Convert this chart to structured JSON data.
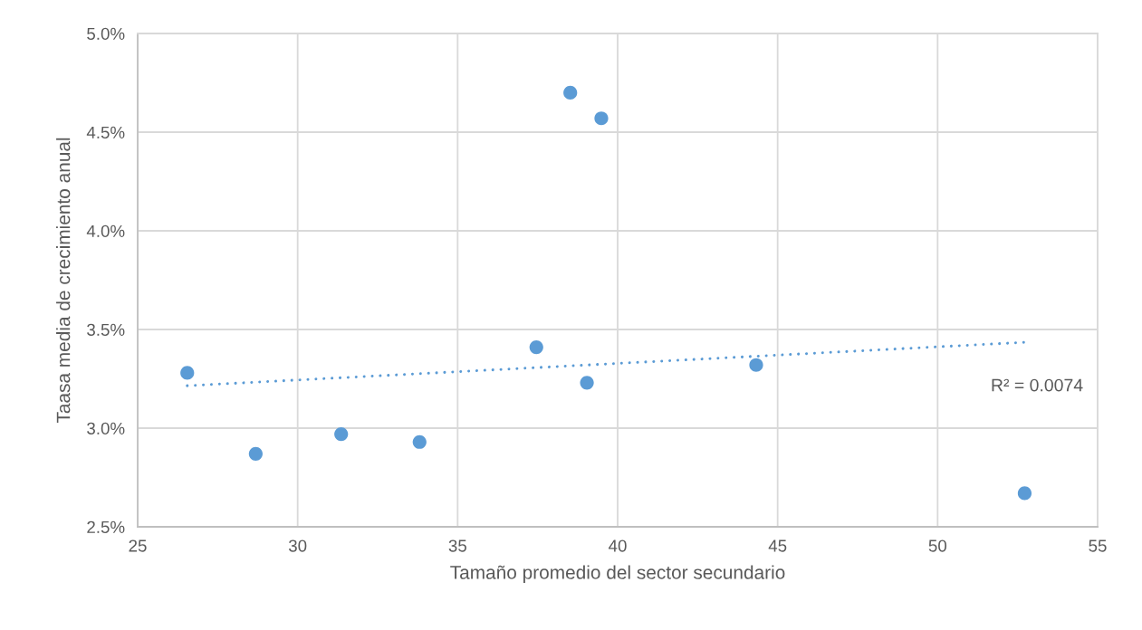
{
  "chart_data": {
    "type": "scatter",
    "xlabel": "Tamaño promedio del sector secundario",
    "ylabel": "Taasa media de crecimiento anual",
    "xlim": [
      25,
      55
    ],
    "xticks": [
      25,
      30,
      35,
      40,
      45,
      50,
      55
    ],
    "ylim": [
      2.5,
      5.0
    ],
    "yticks": [
      {
        "value": 2.5,
        "label": "2.5%"
      },
      {
        "value": 3.0,
        "label": "3.0%"
      },
      {
        "value": 3.5,
        "label": "3.5%"
      },
      {
        "value": 4.0,
        "label": "4.0%"
      },
      {
        "value": 4.5,
        "label": "4.5%"
      },
      {
        "value": 5.0,
        "label": "5.0%"
      }
    ],
    "grid": true,
    "annotations": [
      "R² = 0.0074"
    ],
    "series": [
      {
        "color": "#5b9bd5",
        "marker": "circle",
        "x": [
          26.55,
          28.69,
          31.36,
          33.81,
          37.46,
          38.52,
          39.04,
          39.49,
          44.33,
          52.72
        ],
        "values": [
          3.28,
          2.87,
          2.97,
          2.93,
          3.41,
          4.7,
          3.23,
          4.57,
          3.32,
          2.67
        ]
      },
      {
        "type": "line",
        "color": "#5b9bd5",
        "marker": "none",
        "line_style": "dotted",
        "x": [
          26.55,
          52.72
        ],
        "values": [
          3.215,
          3.435
        ]
      }
    ]
  }
}
